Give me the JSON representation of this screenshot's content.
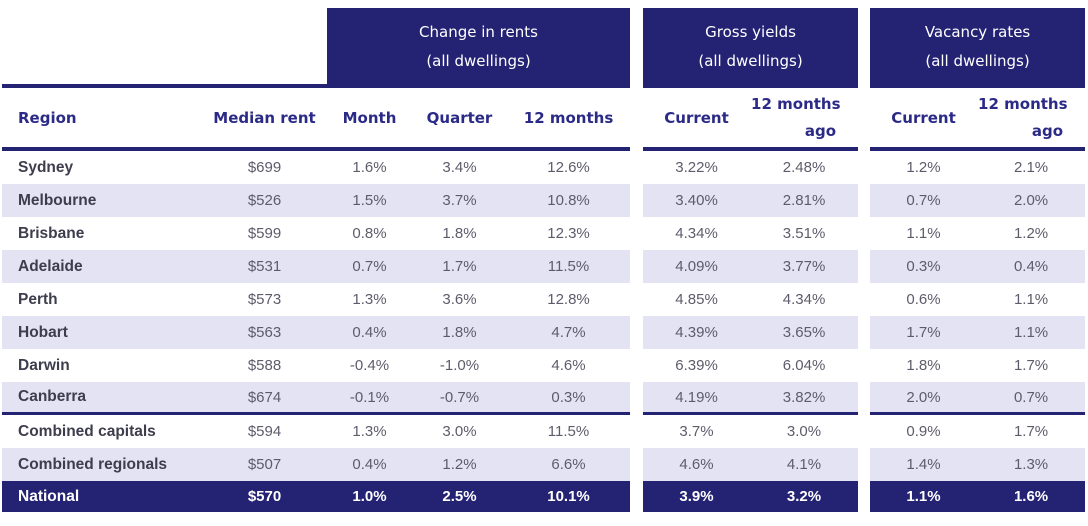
{
  "colors": {
    "navy": "#242273",
    "row_stripe": "#e4e3f4",
    "header_text": "#2b2a87",
    "region_text": "#3d3d4d",
    "value_text": "#5d5c6b",
    "total_row_text": "#ffffff"
  },
  "groups": [
    {
      "title": "Change in rents",
      "subtitle": "(all dwellings)"
    },
    {
      "title": "Gross yields",
      "subtitle": "(all dwellings)"
    },
    {
      "title": "Vacancy rates",
      "subtitle": "(all dwellings)"
    }
  ],
  "headers": {
    "region": "Region",
    "median_rent": "Median rent",
    "month": "Month",
    "quarter": "Quarter",
    "twelve_months": "12 months",
    "gy_current": "Current",
    "gy_ago_line1": "12 months",
    "gy_ago_line2": "ago",
    "vac_current": "Current",
    "vac_ago_line1": "12 months",
    "vac_ago_line2": "ago"
  },
  "chart_data": {
    "type": "table",
    "column_groups": [
      {
        "label": "Change in rents (all dwellings)",
        "columns": [
          "Month",
          "Quarter",
          "12 months"
        ]
      },
      {
        "label": "Gross yields (all dwellings)",
        "columns": [
          "Current",
          "12 months ago"
        ]
      },
      {
        "label": "Vacancy rates (all dwellings)",
        "columns": [
          "Current",
          "12 months ago"
        ]
      }
    ],
    "columns": [
      "Region",
      "Median rent",
      "Month",
      "Quarter",
      "12 months",
      "Current",
      "12 months ago",
      "Current",
      "12 months ago"
    ],
    "rows": [
      {
        "region": "Sydney",
        "type": "capital",
        "cells": [
          "$699",
          "1.6%",
          "3.4%",
          "12.6%",
          "3.22%",
          "2.48%",
          "1.2%",
          "2.1%"
        ]
      },
      {
        "region": "Melbourne",
        "type": "capital",
        "cells": [
          "$526",
          "1.5%",
          "3.7%",
          "10.8%",
          "3.40%",
          "2.81%",
          "0.7%",
          "2.0%"
        ]
      },
      {
        "region": "Brisbane",
        "type": "capital",
        "cells": [
          "$599",
          "0.8%",
          "1.8%",
          "12.3%",
          "4.34%",
          "3.51%",
          "1.1%",
          "1.2%"
        ]
      },
      {
        "region": "Adelaide",
        "type": "capital",
        "cells": [
          "$531",
          "0.7%",
          "1.7%",
          "11.5%",
          "4.09%",
          "3.77%",
          "0.3%",
          "0.4%"
        ]
      },
      {
        "region": "Perth",
        "type": "capital",
        "cells": [
          "$573",
          "1.3%",
          "3.6%",
          "12.8%",
          "4.85%",
          "4.34%",
          "0.6%",
          "1.1%"
        ]
      },
      {
        "region": "Hobart",
        "type": "capital",
        "cells": [
          "$563",
          "0.4%",
          "1.8%",
          "4.7%",
          "4.39%",
          "3.65%",
          "1.7%",
          "1.1%"
        ]
      },
      {
        "region": "Darwin",
        "type": "capital",
        "cells": [
          "$588",
          "-0.4%",
          "-1.0%",
          "4.6%",
          "6.39%",
          "6.04%",
          "1.8%",
          "1.7%"
        ]
      },
      {
        "region": "Canberra",
        "type": "capital",
        "cells": [
          "$674",
          "-0.1%",
          "-0.7%",
          "0.3%",
          "4.19%",
          "3.82%",
          "2.0%",
          "0.7%"
        ]
      },
      {
        "region": "Combined capitals",
        "type": "aggregate",
        "cells": [
          "$594",
          "1.3%",
          "3.0%",
          "11.5%",
          "3.7%",
          "3.0%",
          "0.9%",
          "1.7%"
        ]
      },
      {
        "region": "Combined regionals",
        "type": "aggregate",
        "cells": [
          "$507",
          "0.4%",
          "1.2%",
          "6.6%",
          "4.6%",
          "4.1%",
          "1.4%",
          "1.3%"
        ]
      },
      {
        "region": "National",
        "type": "total",
        "cells": [
          "$570",
          "1.0%",
          "2.5%",
          "10.1%",
          "3.9%",
          "3.2%",
          "1.1%",
          "1.6%"
        ]
      }
    ]
  }
}
